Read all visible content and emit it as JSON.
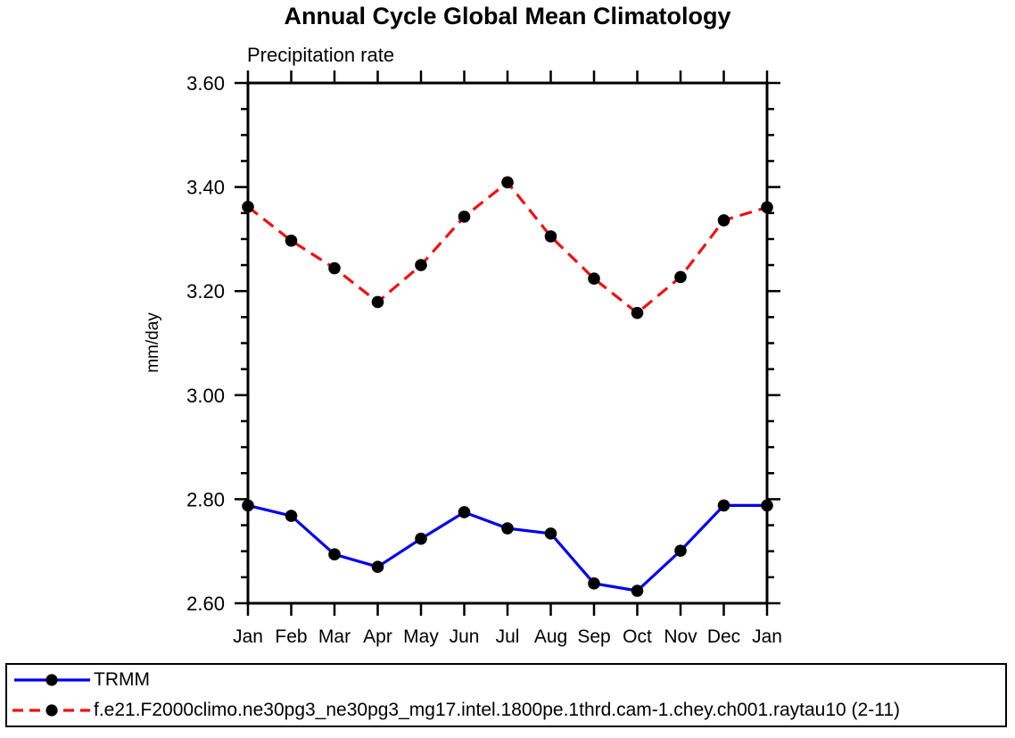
{
  "chart_data": {
    "type": "line",
    "title": "Annual Cycle Global Mean Climatology",
    "subtitle": "Precipitation rate",
    "ylabel": "mm/day",
    "xlabel": "",
    "x_categories": [
      "Jan",
      "Feb",
      "Mar",
      "Apr",
      "May",
      "Jun",
      "Jul",
      "Aug",
      "Sep",
      "Oct",
      "Nov",
      "Dec",
      "Jan"
    ],
    "ylim": [
      2.6,
      3.6
    ],
    "ytick_major_values": [
      2.6,
      2.8,
      3.0,
      3.2,
      3.4,
      3.6
    ],
    "ytick_labels": [
      "2.60",
      "2.80",
      "3.00",
      "3.20",
      "3.40",
      "3.60"
    ],
    "ytick_minor_step": 0.05,
    "grid": false,
    "legend_position": "bottom",
    "axis_color": "#000000",
    "series": [
      {
        "name": "TRMM",
        "color": "#0000ee",
        "line_style": "solid",
        "marker": "circle",
        "marker_color": "#000000",
        "values": [
          2.788,
          2.768,
          2.694,
          2.67,
          2.724,
          2.775,
          2.744,
          2.734,
          2.638,
          2.624,
          2.701,
          2.788,
          2.788
        ]
      },
      {
        "name": "f.e21.F2000climo.ne30pg3_ne30pg3_mg17.intel.1800pe.1thrd.cam-1.chey.ch001.raytau10 (2-11)",
        "color": "#ee1111",
        "line_style": "dashed",
        "marker": "circle",
        "marker_color": "#000000",
        "values": [
          3.362,
          3.297,
          3.244,
          3.179,
          3.25,
          3.343,
          3.409,
          3.305,
          3.224,
          3.158,
          3.227,
          3.336,
          3.361
        ]
      }
    ]
  }
}
